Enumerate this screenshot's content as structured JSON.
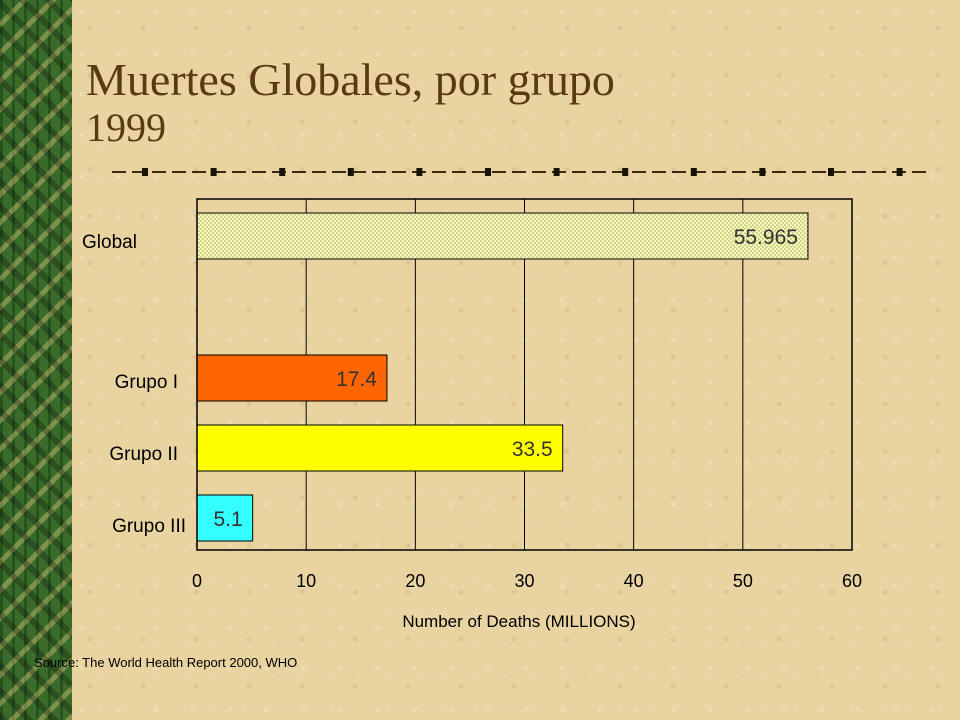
{
  "title": "Muertes Globales, por grupo",
  "subtitle": "1999",
  "source": "Source: The World Health Report 2000, WHO",
  "chart_data": {
    "type": "bar",
    "orientation": "horizontal",
    "categories": [
      "Global",
      "Grupo I",
      "Grupo II",
      "Grupo III"
    ],
    "values": [
      55.965,
      17.4,
      33.5,
      5.1
    ],
    "data_labels": [
      "55.965",
      "17.4",
      "33.5",
      "5.1"
    ],
    "colors": [
      "#f6f8b8",
      "#ff6600",
      "#ffff00",
      "#33ffff"
    ],
    "xlabel": "Number of Deaths (MILLIONS)",
    "ylabel": "",
    "xlim": [
      0,
      60
    ],
    "x_ticks": [
      0,
      10,
      20,
      30,
      40,
      50,
      60
    ],
    "grid": "vertical",
    "legend": "none"
  }
}
